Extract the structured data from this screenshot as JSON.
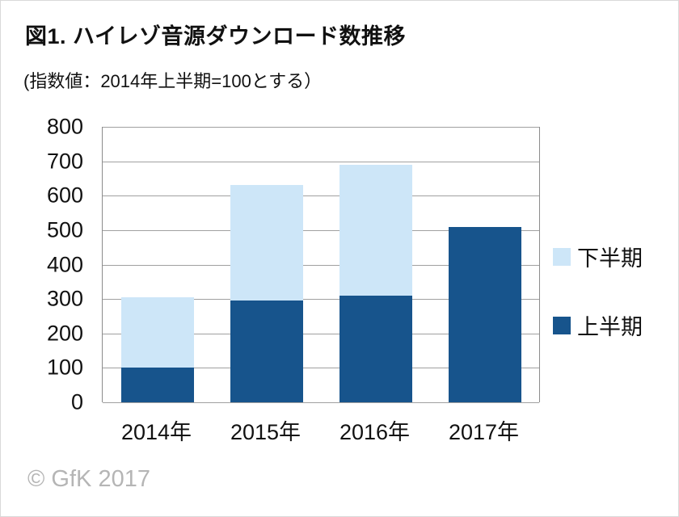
{
  "title": "図1. ハイレゾ音源ダウンロード数推移",
  "subtitle": "(指数値：2014年上半期=100とする）",
  "footer": "© GfK 2017",
  "chart_data": {
    "type": "bar",
    "stacked": true,
    "title": "図1. ハイレゾ音源ダウンロード数推移",
    "subtitle": "(指数値：2014年上半期=100とする）",
    "categories": [
      "2014年",
      "2015年",
      "2016年",
      "2017年"
    ],
    "series": [
      {
        "name": "上半期",
        "color": "#17548c",
        "values": [
          100,
          295,
          310,
          510
        ]
      },
      {
        "name": "下半期",
        "color": "#cde6f8",
        "values": [
          205,
          335,
          380,
          0
        ]
      }
    ],
    "totals": [
      305,
      630,
      690,
      510
    ],
    "ylim": [
      0,
      800
    ],
    "yticks": [
      0,
      100,
      200,
      300,
      400,
      500,
      600,
      700,
      800
    ],
    "grid": true,
    "legend_position": "right",
    "legend_order": [
      "下半期",
      "上半期"
    ],
    "gridline_color": "#a0a0a0",
    "text_color": "#111111",
    "footer_color": "#b5b5b5"
  }
}
